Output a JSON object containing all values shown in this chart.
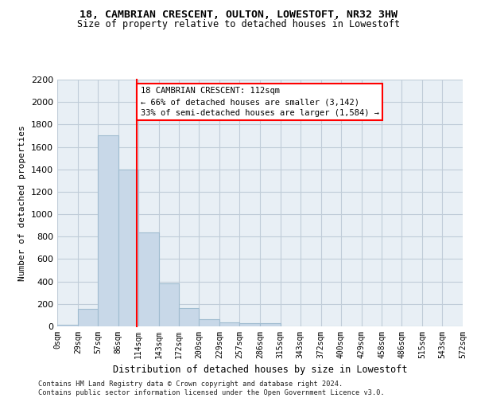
{
  "title": "18, CAMBRIAN CRESCENT, OULTON, LOWESTOFT, NR32 3HW",
  "subtitle": "Size of property relative to detached houses in Lowestoft",
  "xlabel": "Distribution of detached houses by size in Lowestoft",
  "ylabel": "Number of detached properties",
  "bar_color": "#c8d8e8",
  "bar_edge_color": "#a0bcd0",
  "grid_color": "#c0ccd8",
  "background_color": "#e8eff5",
  "property_line_x": 112,
  "property_line_color": "red",
  "bin_edges": [
    0,
    29,
    57,
    86,
    114,
    143,
    172,
    200,
    229,
    257,
    286,
    315,
    343,
    372,
    400,
    429,
    458,
    486,
    515,
    543,
    572
  ],
  "bar_heights": [
    15,
    155,
    1700,
    1400,
    840,
    380,
    160,
    65,
    35,
    28,
    28,
    0,
    0,
    0,
    0,
    0,
    0,
    0,
    0,
    0
  ],
  "ylim": [
    0,
    2200
  ],
  "yticks": [
    0,
    200,
    400,
    600,
    800,
    1000,
    1200,
    1400,
    1600,
    1800,
    2000,
    2200
  ],
  "annotation_text": "18 CAMBRIAN CRESCENT: 112sqm\n← 66% of detached houses are smaller (3,142)\n33% of semi-detached houses are larger (1,584) →",
  "annotation_box_color": "white",
  "annotation_box_edge_color": "red",
  "footer_line1": "Contains HM Land Registry data © Crown copyright and database right 2024.",
  "footer_line2": "Contains public sector information licensed under the Open Government Licence v3.0.",
  "figsize": [
    6.0,
    5.0
  ],
  "dpi": 100
}
